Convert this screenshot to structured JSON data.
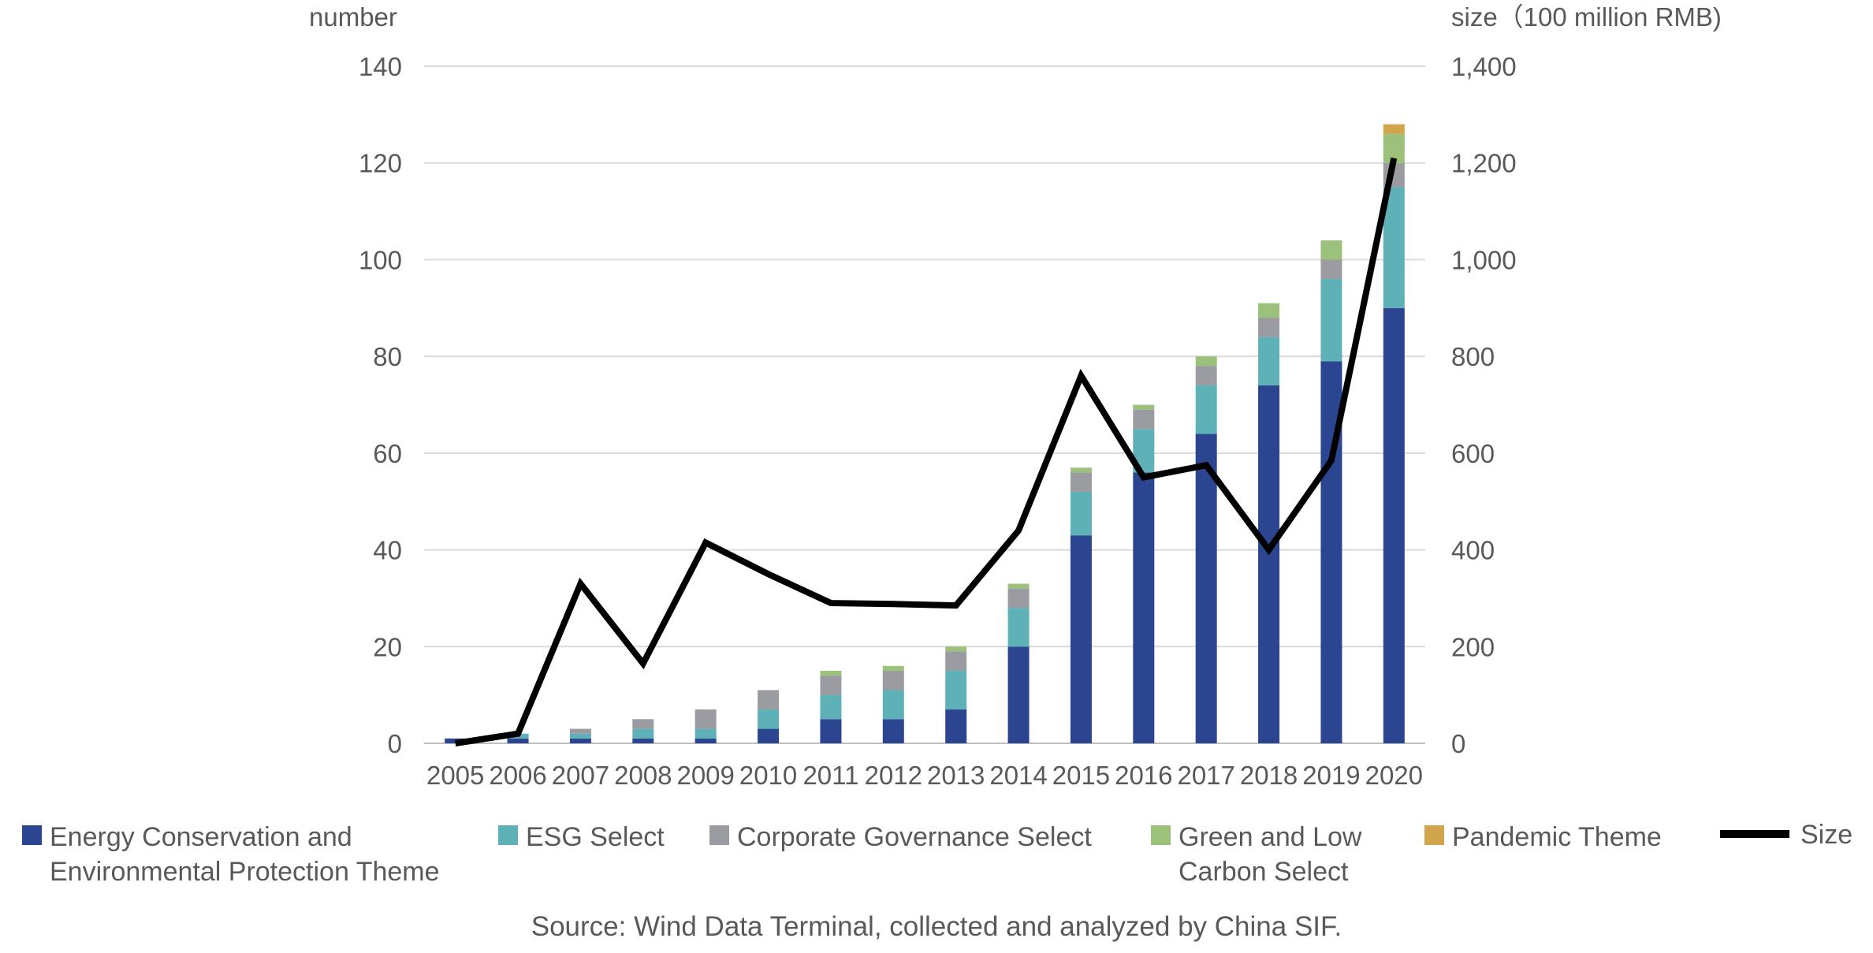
{
  "chart_data": {
    "type": "bar",
    "stacked": true,
    "categories": [
      "2005",
      "2006",
      "2007",
      "2008",
      "2009",
      "2010",
      "2011",
      "2012",
      "2013",
      "2014",
      "2015",
      "2016",
      "2017",
      "2018",
      "2019",
      "2020"
    ],
    "series": [
      {
        "name": "Energy Conservation and Environmental Protection Theme",
        "name_lines": [
          "Energy Conservation and",
          "Environmental Protection Theme"
        ],
        "color": "#2b4590",
        "axis": "left",
        "values": [
          1,
          1,
          1,
          1,
          1,
          3,
          5,
          5,
          7,
          20,
          43,
          56,
          64,
          74,
          79,
          90
        ]
      },
      {
        "name": "ESG Select",
        "name_lines": [
          "ESG Select"
        ],
        "color": "#5fb1b8",
        "axis": "left",
        "values": [
          0,
          1,
          1,
          2,
          2,
          4,
          5,
          6,
          8,
          8,
          9,
          9,
          10,
          10,
          17,
          25
        ]
      },
      {
        "name": "Corporate Governance Select",
        "name_lines": [
          "Corporate Governance Select"
        ],
        "color": "#9a9ca2",
        "axis": "left",
        "values": [
          0,
          0,
          1,
          2,
          4,
          4,
          4,
          4,
          4,
          4,
          4,
          4,
          4,
          4,
          4,
          5
        ]
      },
      {
        "name": "Green and Low Carbon Select",
        "name_lines": [
          "Green and Low",
          "Carbon Select"
        ],
        "color": "#9cc17b",
        "axis": "left",
        "values": [
          0,
          0,
          0,
          0,
          0,
          0,
          1,
          1,
          1,
          1,
          1,
          1,
          2,
          3,
          4,
          6
        ]
      },
      {
        "name": "Pandemic Theme",
        "name_lines": [
          "Pandemic Theme"
        ],
        "color": "#d1a54c",
        "axis": "left",
        "values": [
          0,
          0,
          0,
          0,
          0,
          0,
          0,
          0,
          0,
          0,
          0,
          0,
          0,
          0,
          0,
          2
        ]
      },
      {
        "name": "Size",
        "name_lines": [
          "Size"
        ],
        "type": "line",
        "color": "#000000",
        "axis": "right",
        "values": [
          0,
          20,
          330,
          165,
          415,
          350,
          290,
          288,
          285,
          440,
          760,
          550,
          575,
          400,
          585,
          1210
        ]
      }
    ],
    "left_axis": {
      "title": "number",
      "ylim": [
        0,
        140
      ],
      "ticks": [
        "0",
        "20",
        "40",
        "60",
        "80",
        "100",
        "120",
        "140"
      ]
    },
    "right_axis": {
      "title": "size（100 million RMB)",
      "ylim": [
        0,
        1400
      ],
      "ticks": [
        "0",
        "200",
        "400",
        "600",
        "800",
        "1,000",
        "1,200",
        "1,400"
      ]
    },
    "grid": true,
    "legend_position": "bottom",
    "source": "Source: Wind Data Terminal, collected and analyzed by China SIF."
  }
}
